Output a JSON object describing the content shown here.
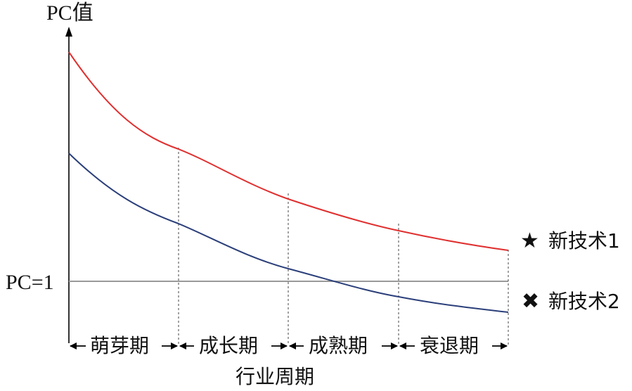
{
  "y_axis_label": "PC值",
  "baseline_label": "PC=1",
  "x_axis_label": "行业周期",
  "phases": [
    "萌芽期",
    "成长期",
    "成熟期",
    "衰退期"
  ],
  "series": [
    {
      "name": "新技术1",
      "color": "#e03030",
      "marker": "star-icon",
      "symbol": "★"
    },
    {
      "name": "新技术2",
      "color": "#2b3f7a",
      "marker": "cross-icon",
      "symbol": "✖"
    }
  ]
}
